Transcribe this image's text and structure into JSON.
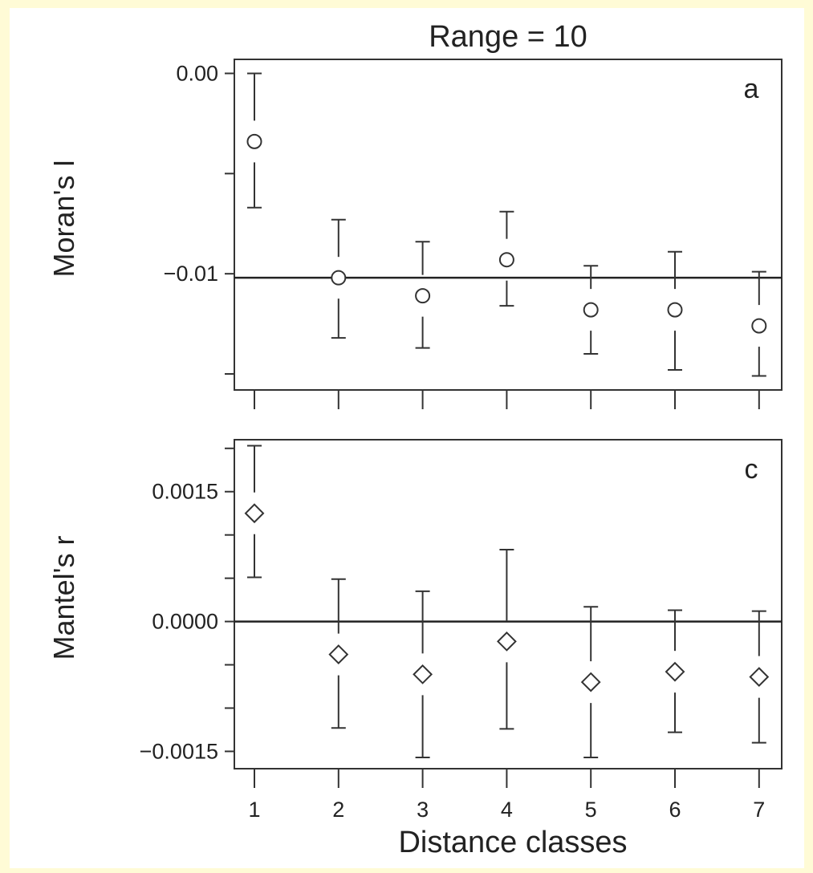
{
  "chart_data": [
    {
      "type": "scatter",
      "panel_label": "a",
      "title": "Range = 10",
      "ylabel": "Moran's I",
      "xlabel": "",
      "categories": [
        "1",
        "2",
        "3",
        "4",
        "5",
        "6",
        "7"
      ],
      "ylim": [
        -0.0158,
        0.0007
      ],
      "yticks": [
        0.0,
        -0.005,
        -0.01,
        -0.015
      ],
      "ytick_labels": [
        "0.00",
        "",
        "−0.01",
        ""
      ],
      "reference_line": -0.0102,
      "marker": "circle",
      "values": [
        -0.0034,
        -0.0102,
        -0.0111,
        -0.0093,
        -0.0118,
        -0.0118,
        -0.0126
      ],
      "error_upper": [
        0.0,
        -0.0073,
        -0.0084,
        -0.0069,
        -0.0096,
        -0.0089,
        -0.0099
      ],
      "error_lower": [
        -0.0067,
        -0.0132,
        -0.0137,
        -0.0116,
        -0.014,
        -0.0148,
        -0.0151
      ],
      "grid": false
    },
    {
      "type": "scatter",
      "panel_label": "c",
      "title": "",
      "ylabel": "Mantel's r",
      "xlabel": "Distance classes",
      "categories": [
        "1",
        "2",
        "3",
        "4",
        "5",
        "6",
        "7"
      ],
      "ylim": [
        -0.0017,
        0.0021
      ],
      "yticks": [
        0.002,
        0.0015,
        0.001,
        0.0005,
        0.0,
        -0.0005,
        -0.001,
        -0.0015
      ],
      "ytick_labels": [
        "",
        "0.0015",
        "",
        "",
        "0.0000",
        "",
        "",
        "−0.0015"
      ],
      "reference_line": 0.0,
      "marker": "diamond",
      "values": [
        0.00125,
        -0.00038,
        -0.00061,
        -0.00023,
        -0.0007,
        -0.00058,
        -0.00064
      ],
      "error_upper": [
        0.00203,
        0.00049,
        0.00035,
        0.00083,
        0.00017,
        0.00013,
        0.00012
      ],
      "error_lower": [
        0.00051,
        -0.00123,
        -0.00157,
        -0.00124,
        -0.00157,
        -0.00128,
        -0.0014
      ],
      "grid": false
    }
  ]
}
